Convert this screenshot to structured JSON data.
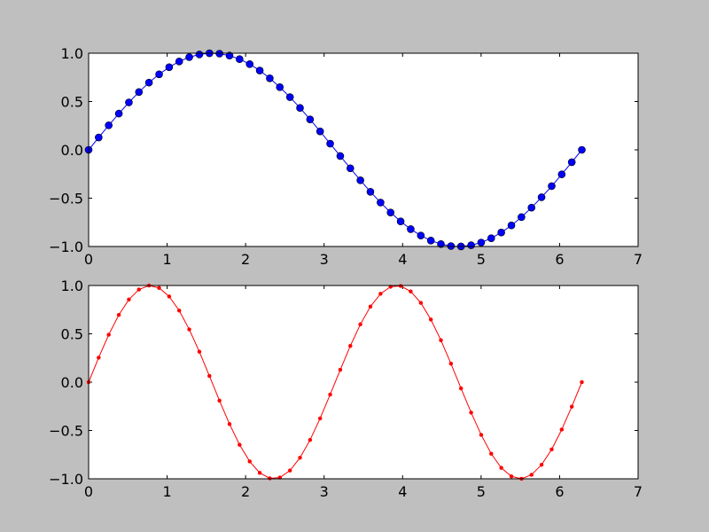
{
  "chart_data": [
    {
      "type": "line",
      "xlim": [
        0,
        7
      ],
      "ylim": [
        -1.0,
        1.0
      ],
      "xticks": [
        "0",
        "1",
        "2",
        "3",
        "4",
        "5",
        "6",
        "7"
      ],
      "yticks": [
        "−1.0",
        "−0.5",
        "0.0",
        "0.5",
        "1.0"
      ],
      "grid": false,
      "series": [
        {
          "color": "#0000ff",
          "marker": "circle",
          "x": [
            0,
            0.128,
            0.256,
            0.385,
            0.513,
            0.641,
            0.769,
            0.898,
            1.026,
            1.154,
            1.282,
            1.411,
            1.539,
            1.667,
            1.795,
            1.923,
            2.052,
            2.18,
            2.308,
            2.436,
            2.565,
            2.693,
            2.821,
            2.949,
            3.077,
            3.206,
            3.334,
            3.462,
            3.59,
            3.719,
            3.847,
            3.975,
            4.103,
            4.232,
            4.36,
            4.488,
            4.616,
            4.744,
            4.873,
            5.001,
            5.129,
            5.257,
            5.386,
            5.514,
            5.642,
            5.77,
            5.899,
            6.027,
            6.155,
            6.283
          ],
          "y": [
            0,
            0.1279,
            0.2536,
            0.3752,
            0.4907,
            0.5981,
            0.6959,
            0.7818,
            0.855,
            0.9144,
            0.9587,
            0.9872,
            0.9995,
            0.9954,
            0.9749,
            0.9385,
            0.8866,
            0.8204,
            0.7406,
            0.6482,
            0.5455,
            0.4339,
            0.3151,
            0.1912,
            0.0641,
            -0.0641,
            -0.1912,
            -0.3151,
            -0.4339,
            -0.5455,
            -0.6482,
            -0.7406,
            -0.8204,
            -0.8866,
            -0.9385,
            -0.9749,
            -0.9954,
            -0.9995,
            -0.9872,
            -0.9587,
            -0.9144,
            -0.855,
            -0.7818,
            -0.6959,
            -0.5981,
            -0.4907,
            -0.3752,
            -0.2536,
            -0.1279,
            0
          ]
        }
      ]
    },
    {
      "type": "line",
      "xlim": [
        0,
        7
      ],
      "ylim": [
        -1.0,
        1.0
      ],
      "xticks": [
        "0",
        "1",
        "2",
        "3",
        "4",
        "5",
        "6",
        "7"
      ],
      "yticks": [
        "−1.0",
        "−0.5",
        "0.0",
        "0.5",
        "1.0"
      ],
      "grid": false,
      "series": [
        {
          "color": "#ff0000",
          "marker": "dot",
          "x": [
            0,
            0.128,
            0.256,
            0.385,
            0.513,
            0.641,
            0.769,
            0.898,
            1.026,
            1.154,
            1.282,
            1.411,
            1.539,
            1.667,
            1.795,
            1.923,
            2.052,
            2.18,
            2.308,
            2.436,
            2.565,
            2.693,
            2.821,
            2.949,
            3.077,
            3.206,
            3.334,
            3.462,
            3.59,
            3.719,
            3.847,
            3.975,
            4.103,
            4.232,
            4.36,
            4.488,
            4.616,
            4.744,
            4.873,
            5.001,
            5.129,
            5.257,
            5.386,
            5.514,
            5.642,
            5.77,
            5.899,
            6.027,
            6.155,
            6.283
          ],
          "y": [
            0,
            0.2536,
            0.4907,
            0.6959,
            0.855,
            0.9587,
            0.9995,
            0.9749,
            0.8866,
            0.7406,
            0.5455,
            0.3151,
            0.0641,
            -0.1912,
            -0.4339,
            -0.6482,
            -0.8204,
            -0.9385,
            -0.9954,
            -0.9872,
            -0.9144,
            -0.7818,
            -0.5981,
            -0.3752,
            -0.1279,
            0.1279,
            0.3752,
            0.5981,
            0.7818,
            0.9144,
            0.9872,
            0.9954,
            0.9385,
            0.8204,
            0.6482,
            0.4339,
            0.1912,
            -0.0641,
            -0.3151,
            -0.5455,
            -0.7406,
            -0.8866,
            -0.9749,
            -0.9995,
            -0.9587,
            -0.855,
            -0.6959,
            -0.4907,
            -0.2536,
            0
          ]
        }
      ]
    }
  ]
}
